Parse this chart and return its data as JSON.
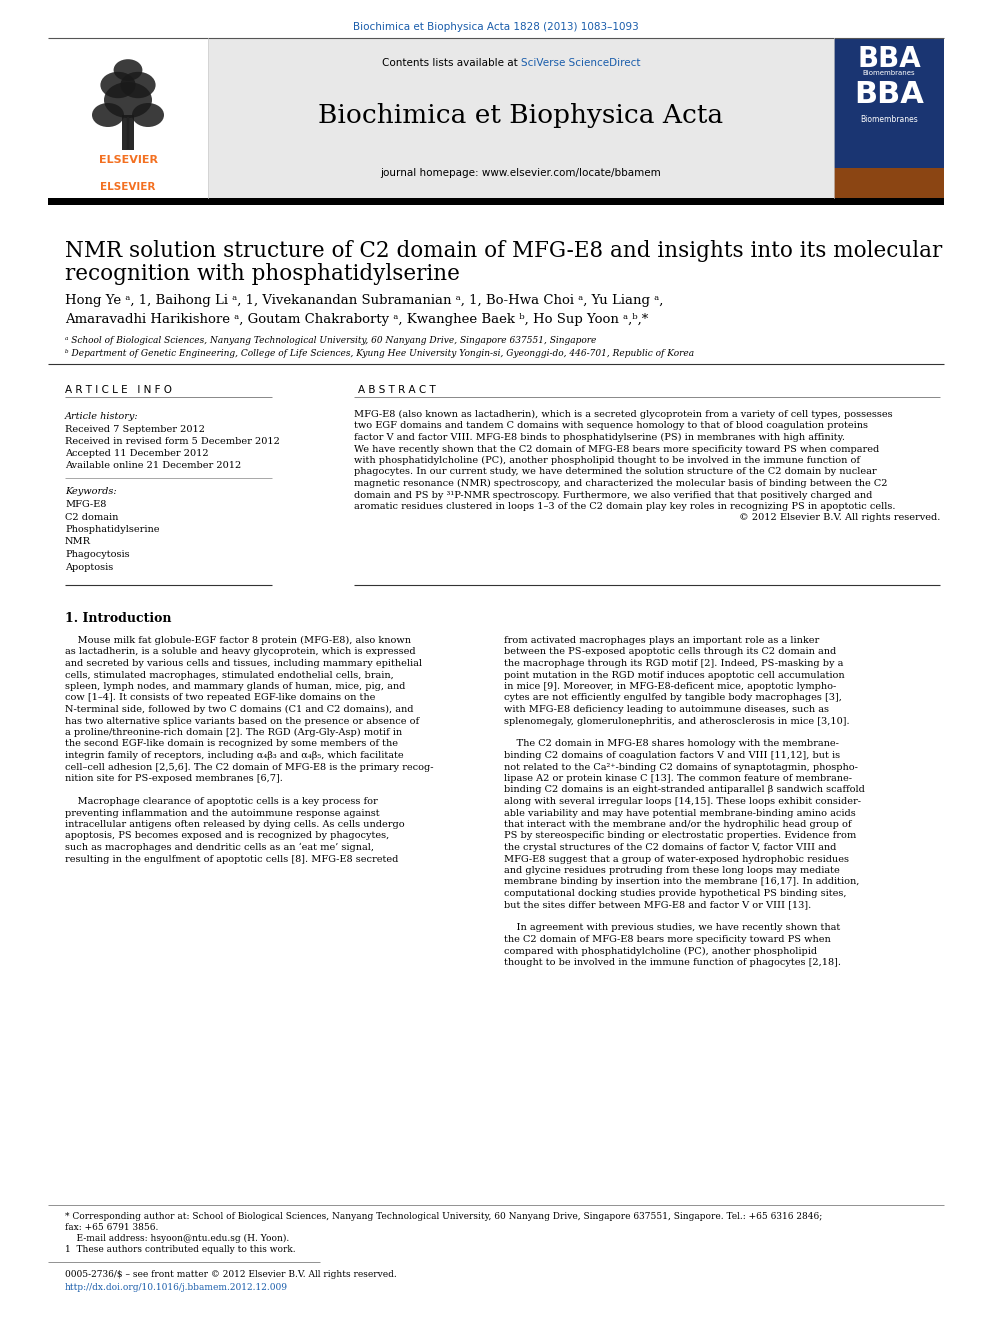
{
  "journal_line": "Biochimica et Biophysica Acta 1828 (2013) 1083–1093",
  "journal_line_color": "#1a5dab",
  "journal_name": "Biochimica et Biophysica Acta",
  "journal_homepage": "journal homepage: www.elsevier.com/locate/bbamem",
  "header_bg": "#e8e8e8",
  "title_line1": "NMR solution structure of C2 domain of MFG-E8 and insights into its molecular",
  "title_line2": "recognition with phosphatidylserine",
  "author_line1": "Hong Ye ᵃ, 1, Baihong Li ᵃ, 1, Vivekanandan Subramanian ᵃ, 1, Bo-Hwa Choi ᵃ, Yu Liang ᵃ,",
  "author_line2": "Amaravadhi Harikishore ᵃ, Goutam Chakraborty ᵃ, Kwanghee Baek ᵇ, Ho Sup Yoon ᵃ,ᵇ,*",
  "affil_a": "ᵃ School of Biological Sciences, Nanyang Technological University, 60 Nanyang Drive, Singapore 637551, Singapore",
  "affil_b": "ᵇ Department of Genetic Engineering, College of Life Sciences, Kyung Hee University Yongin-si, Gyeonggi-do, 446-701, Republic of Korea",
  "article_info_header": "A R T I C L E   I N F O",
  "abstract_header": "A B S T R A C T",
  "article_history_title": "Article history:",
  "received": "Received 7 September 2012",
  "revised": "Received in revised form 5 December 2012",
  "accepted": "Accepted 11 December 2012",
  "available": "Available online 21 December 2012",
  "keywords_title": "Keywords:",
  "keywords": [
    "MFG-E8",
    "C2 domain",
    "Phosphatidylserine",
    "NMR",
    "Phagocytosis",
    "Apoptosis"
  ],
  "abstract_lines": [
    "MFG-E8 (also known as lactadherin), which is a secreted glycoprotein from a variety of cell types, possesses",
    "two EGF domains and tandem C domains with sequence homology to that of blood coagulation proteins",
    "factor V and factor VIII. MFG-E8 binds to phosphatidylserine (PS) in membranes with high affinity.",
    "We have recently shown that the C2 domain of MFG-E8 bears more specificity toward PS when compared",
    "with phosphatidylcholine (PC), another phospholipid thought to be involved in the immune function of",
    "phagocytes. In our current study, we have determined the solution structure of the C2 domain by nuclear",
    "magnetic resonance (NMR) spectroscopy, and characterized the molecular basis of binding between the C2",
    "domain and PS by ³¹P-NMR spectroscopy. Furthermore, we also verified that that positively charged and",
    "aromatic residues clustered in loops 1–3 of the C2 domain play key roles in recognizing PS in apoptotic cells.",
    "© 2012 Elsevier B.V. All rights reserved."
  ],
  "intro_header": "1. Introduction",
  "intro_left_lines": [
    "    Mouse milk fat globule-EGF factor 8 protein (MFG-E8), also known",
    "as lactadherin, is a soluble and heavy glycoprotein, which is expressed",
    "and secreted by various cells and tissues, including mammary epithelial",
    "cells, stimulated macrophages, stimulated endothelial cells, brain,",
    "spleen, lymph nodes, and mammary glands of human, mice, pig, and",
    "cow [1–4]. It consists of two repeated EGF-like domains on the",
    "N-terminal side, followed by two C domains (C1 and C2 domains), and",
    "has two alternative splice variants based on the presence or absence of",
    "a proline/threonine-rich domain [2]. The RGD (Arg-Gly-Asp) motif in",
    "the second EGF-like domain is recognized by some members of the",
    "integrin family of receptors, including α₄β₃ and α₄β₅, which facilitate",
    "cell–cell adhesion [2,5,6]. The C2 domain of MFG-E8 is the primary recog-",
    "nition site for PS-exposed membranes [6,7].",
    "",
    "    Macrophage clearance of apoptotic cells is a key process for",
    "preventing inflammation and the autoimmune response against",
    "intracellular antigens often released by dying cells. As cells undergo",
    "apoptosis, PS becomes exposed and is recognized by phagocytes,",
    "such as macrophages and dendritic cells as an ‘eat me’ signal,",
    "resulting in the engulfment of apoptotic cells [8]. MFG-E8 secreted"
  ],
  "intro_right_lines": [
    "from activated macrophages plays an important role as a linker",
    "between the PS-exposed apoptotic cells through its C2 domain and",
    "the macrophage through its RGD motif [2]. Indeed, PS-masking by a",
    "point mutation in the RGD motif induces apoptotic cell accumulation",
    "in mice [9]. Moreover, in MFG-E8-deficent mice, apoptotic lympho-",
    "cytes are not efficiently engulfed by tangible body macrophages [3],",
    "with MFG-E8 deficiency leading to autoimmune diseases, such as",
    "splenomegaly, glomerulonephritis, and atherosclerosis in mice [3,10].",
    "",
    "    The C2 domain in MFG-E8 shares homology with the membrane-",
    "binding C2 domains of coagulation factors V and VIII [11,12], but is",
    "not related to the Ca²⁺-binding C2 domains of synaptotagmin, phospho-",
    "lipase A2 or protein kinase C [13]. The common feature of membrane-",
    "binding C2 domains is an eight-stranded antiparallel β sandwich scaffold",
    "along with several irregular loops [14,15]. These loops exhibit consider-",
    "able variability and may have potential membrane-binding amino acids",
    "that interact with the membrane and/or the hydrophilic head group of",
    "PS by stereospecific binding or electrostatic properties. Evidence from",
    "the crystal structures of the C2 domains of factor V, factor VIII and",
    "MFG-E8 suggest that a group of water-exposed hydrophobic residues",
    "and glycine residues protruding from these long loops may mediate",
    "membrane binding by insertion into the membrane [16,17]. In addition,",
    "computational docking studies provide hypothetical PS binding sites,",
    "but the sites differ between MFG-E8 and factor V or VIII [13].",
    "",
    "    In agreement with previous studies, we have recently shown that",
    "the C2 domain of MFG-E8 bears more specificity toward PS when",
    "compared with phosphatidylcholine (PC), another phospholipid",
    "thought to be involved in the immune function of phagocytes [2,18]."
  ],
  "footnote_star": "* Corresponding author at: School of Biological Sciences, Nanyang Technological University, 60 Nanyang Drive, Singapore 637551, Singapore. Tel.: +65 6316 2846;",
  "footnote_star2": "fax: +65 6791 3856.",
  "footnote_email": "    E-mail address: hsyoon@ntu.edu.sg (H. Yoon).",
  "footnote_1": "1  These authors contributed equally to this work.",
  "bottom_line1": "0005-2736/$ – see front matter © 2012 Elsevier B.V. All rights reserved.",
  "bottom_line2": "http://dx.doi.org/10.1016/j.bbamem.2012.12.009",
  "link_color": "#1a5dab",
  "black": "#000000",
  "elsevier_orange": "#f37021",
  "bba_blue": "#1a3572"
}
